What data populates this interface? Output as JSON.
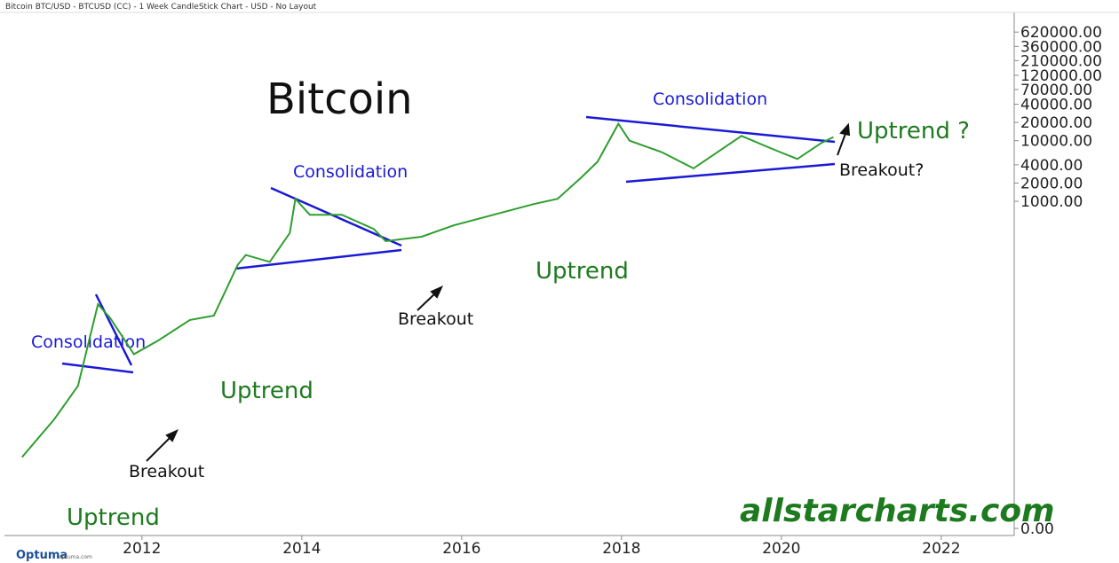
{
  "header": "Bitcoin BTC/USD - BTCUSD (CC) - 1 Week CandleStick Chart - USD - No Layout",
  "footer": {
    "brand": "Optuma",
    "site": "optuma.com"
  },
  "chart_data": {
    "type": "line",
    "title": "Bitcoin",
    "log_scale": true,
    "x": [
      2010.5,
      2010.9,
      2011.2,
      2011.45,
      2011.6,
      2011.9,
      2012.2,
      2012.6,
      2012.9,
      2013.2,
      2013.3,
      2013.6,
      2013.85,
      2013.92,
      2014.1,
      2014.5,
      2014.9,
      2015.05,
      2015.5,
      2015.9,
      2016.5,
      2016.9,
      2017.2,
      2017.5,
      2017.7,
      2017.96,
      2018.1,
      2018.5,
      2018.9,
      2019.5,
      2019.9,
      2020.2,
      2020.5,
      2020.65
    ],
    "series": [
      {
        "name": "BTCUSD",
        "color": "#2e9e2e",
        "values": [
          0.06,
          0.25,
          0.9,
          20,
          12,
          3,
          5,
          11,
          13,
          90,
          130,
          100,
          300,
          1100,
          600,
          600,
          350,
          220,
          260,
          400,
          650,
          900,
          1100,
          2500,
          4500,
          19000,
          10000,
          6500,
          3500,
          12000,
          7200,
          5000,
          9200,
          11500
        ]
      }
    ],
    "xlim": [
      2010.28,
      2022.89
    ],
    "xticks": [
      2012,
      2014,
      2016,
      2018,
      2020,
      2022
    ],
    "ylim": [
      0.004,
      1000000
    ],
    "yticks": [
      {
        "value": 620000,
        "label": "620000.00"
      },
      {
        "value": 360000,
        "label": "360000.00"
      },
      {
        "value": 210000,
        "label": "210000.00"
      },
      {
        "value": 120000,
        "label": "120000.00"
      },
      {
        "value": 70000,
        "label": "70000.00"
      },
      {
        "value": 40000,
        "label": "40000.00"
      },
      {
        "value": 20000,
        "label": "20000.00"
      },
      {
        "value": 10000,
        "label": "10000.00"
      },
      {
        "value": 4000,
        "label": "4000.00"
      },
      {
        "value": 2000,
        "label": "2000.00"
      },
      {
        "value": 1000,
        "label": "1000.00"
      },
      {
        "value": 0.004,
        "label": "0.00"
      }
    ],
    "annotations": [
      "Consolidation",
      "Uptrend",
      "Breakout",
      "Uptrend",
      "Consolidation",
      "Breakout",
      "Uptrend",
      "Consolidation",
      "Breakout?",
      "Uptrend ?",
      "allstarcharts.com"
    ]
  }
}
